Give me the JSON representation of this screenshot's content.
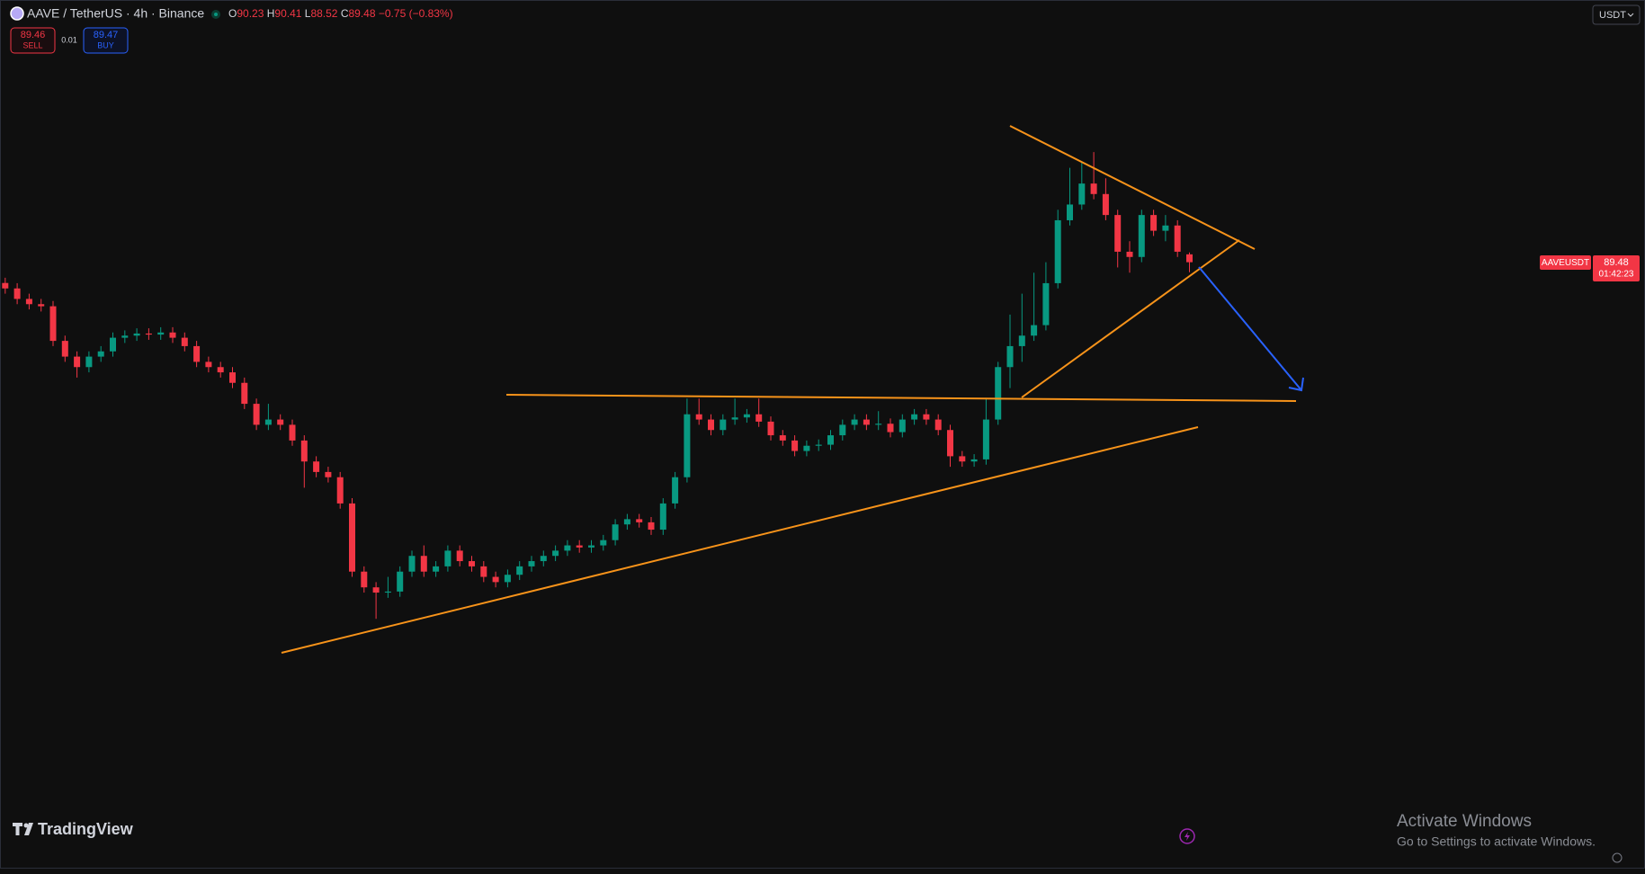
{
  "header": {
    "symbol": "AAVE / TetherUS · 4h · Binance",
    "o_label": "O",
    "h_label": "H",
    "l_label": "L",
    "c_label": "C",
    "change": "−0.75 (−0.83%)"
  },
  "trade": {
    "sell_price": 89.46,
    "sell": "SELL",
    "spread": 0.01,
    "buy_price": 89.47,
    "buy": "BUY"
  },
  "currency": "USDT",
  "price_label": {
    "symbol": "AAVEUSDT",
    "countdown": "01:42:23"
  },
  "branding": "TradingView",
  "watermark": {
    "title": "Activate Windows",
    "text": "Go to Settings to activate Windows."
  },
  "chart_data": {
    "type": "candlestick",
    "up_color": "#089981",
    "down_color": "#f23645",
    "ylim": [
      31.75,
      114.48
    ],
    "open": [
      87.5,
      86.98,
      85.98,
      85.48,
      85.28,
      81.98,
      80.48,
      79.48,
      80.48,
      80.98,
      82.28,
      82.48,
      82.68,
      82.58,
      82.78,
      82.28,
      81.48,
      79.98,
      79.48,
      78.98,
      77.98,
      75.98,
      73.98,
      74.48,
      73.98,
      72.48,
      70.48,
      69.48,
      68.98,
      66.48,
      59.98,
      58.48,
      57.98,
      58.08,
      59.98,
      61.48,
      59.98,
      60.48,
      61.98,
      60.98,
      60.48,
      59.48,
      58.98,
      59.68,
      60.48,
      60.98,
      61.48,
      61.98,
      62.48,
      62.28,
      62.48,
      62.98,
      64.48,
      64.98,
      64.68,
      63.98,
      66.48,
      68.98,
      74.98,
      74.48,
      73.48,
      74.48,
      74.68,
      74.98,
      74.28,
      72.98,
      72.48,
      71.48,
      71.98,
      72.08,
      72.98,
      73.98,
      74.48,
      73.98,
      74.08,
      73.28,
      74.48,
      74.98,
      74.48,
      73.48,
      70.98,
      70.48,
      70.68,
      74.48,
      79.48,
      81.48,
      82.48,
      83.48,
      87.48,
      93.48,
      94.98,
      96.98,
      95.98,
      93.98,
      90.48,
      89.98,
      93.98,
      92.48,
      92.98,
      90.23
    ],
    "high": [
      88.0,
      87.48,
      86.48,
      85.98,
      85.78,
      82.48,
      80.98,
      80.98,
      81.48,
      82.78,
      82.98,
      83.18,
      83.18,
      83.28,
      83.28,
      82.78,
      81.98,
      80.48,
      79.98,
      79.48,
      78.48,
      76.48,
      75.98,
      74.98,
      74.48,
      72.98,
      70.98,
      69.98,
      69.48,
      66.98,
      60.48,
      58.98,
      59.48,
      60.48,
      61.98,
      62.48,
      60.98,
      62.48,
      62.48,
      61.48,
      60.98,
      59.98,
      60.18,
      60.98,
      61.48,
      61.98,
      62.48,
      62.98,
      62.98,
      62.98,
      63.48,
      64.98,
      65.48,
      65.48,
      65.18,
      66.98,
      69.48,
      76.48,
      76.48,
      74.98,
      74.98,
      76.48,
      75.48,
      76.48,
      74.78,
      73.48,
      72.98,
      72.48,
      72.58,
      73.48,
      74.48,
      74.98,
      74.98,
      75.28,
      74.58,
      74.98,
      75.48,
      75.48,
      74.98,
      73.98,
      71.48,
      71.18,
      76.48,
      79.98,
      84.48,
      86.48,
      88.48,
      89.48,
      94.48,
      98.48,
      98.98,
      99.98,
      97.48,
      94.48,
      91.48,
      94.48,
      94.48,
      93.98,
      93.48,
      90.41
    ],
    "low": [
      86.48,
      85.48,
      84.98,
      84.78,
      81.48,
      79.98,
      78.48,
      78.98,
      79.98,
      80.48,
      81.78,
      81.98,
      82.08,
      82.08,
      81.78,
      80.98,
      79.48,
      78.98,
      78.48,
      77.48,
      75.48,
      73.48,
      73.48,
      73.48,
      71.98,
      67.98,
      68.98,
      68.48,
      65.98,
      59.48,
      57.98,
      55.48,
      57.48,
      57.58,
      59.48,
      59.48,
      59.48,
      59.98,
      60.48,
      59.98,
      58.98,
      58.48,
      58.48,
      59.18,
      59.98,
      60.48,
      60.98,
      61.48,
      61.78,
      61.78,
      61.98,
      62.48,
      63.98,
      64.18,
      63.48,
      63.48,
      65.98,
      68.48,
      73.98,
      72.98,
      72.98,
      73.98,
      74.18,
      73.78,
      72.48,
      71.98,
      70.98,
      70.98,
      71.48,
      71.58,
      72.48,
      73.48,
      73.48,
      73.48,
      72.78,
      72.78,
      73.98,
      73.98,
      72.98,
      69.98,
      69.98,
      69.98,
      70.18,
      73.98,
      77.48,
      79.98,
      81.98,
      82.98,
      86.98,
      92.98,
      94.48,
      95.48,
      93.48,
      88.98,
      88.48,
      89.48,
      91.98,
      91.48,
      89.98,
      88.52
    ],
    "close": [
      86.98,
      85.98,
      85.48,
      85.28,
      81.98,
      80.48,
      79.48,
      80.48,
      80.98,
      82.28,
      82.48,
      82.68,
      82.58,
      82.78,
      82.28,
      81.48,
      79.98,
      79.48,
      78.98,
      77.98,
      75.98,
      73.98,
      74.48,
      73.98,
      72.48,
      70.48,
      69.48,
      68.98,
      66.48,
      59.98,
      58.48,
      57.98,
      58.08,
      59.98,
      61.48,
      59.98,
      60.48,
      61.98,
      60.98,
      60.48,
      59.48,
      58.98,
      59.68,
      60.48,
      60.98,
      61.48,
      61.98,
      62.48,
      62.28,
      62.48,
      62.98,
      64.48,
      64.98,
      64.68,
      63.98,
      66.48,
      68.98,
      74.98,
      74.48,
      73.48,
      74.48,
      74.68,
      74.98,
      74.28,
      72.98,
      72.48,
      71.48,
      71.98,
      72.08,
      72.98,
      73.98,
      74.48,
      73.98,
      74.08,
      73.28,
      74.48,
      74.98,
      74.48,
      73.48,
      70.98,
      70.48,
      70.68,
      74.48,
      79.48,
      81.48,
      82.48,
      83.48,
      87.48,
      93.48,
      94.98,
      96.98,
      95.98,
      93.98,
      90.48,
      89.98,
      93.98,
      92.48,
      92.98,
      90.48,
      89.48
    ]
  }
}
